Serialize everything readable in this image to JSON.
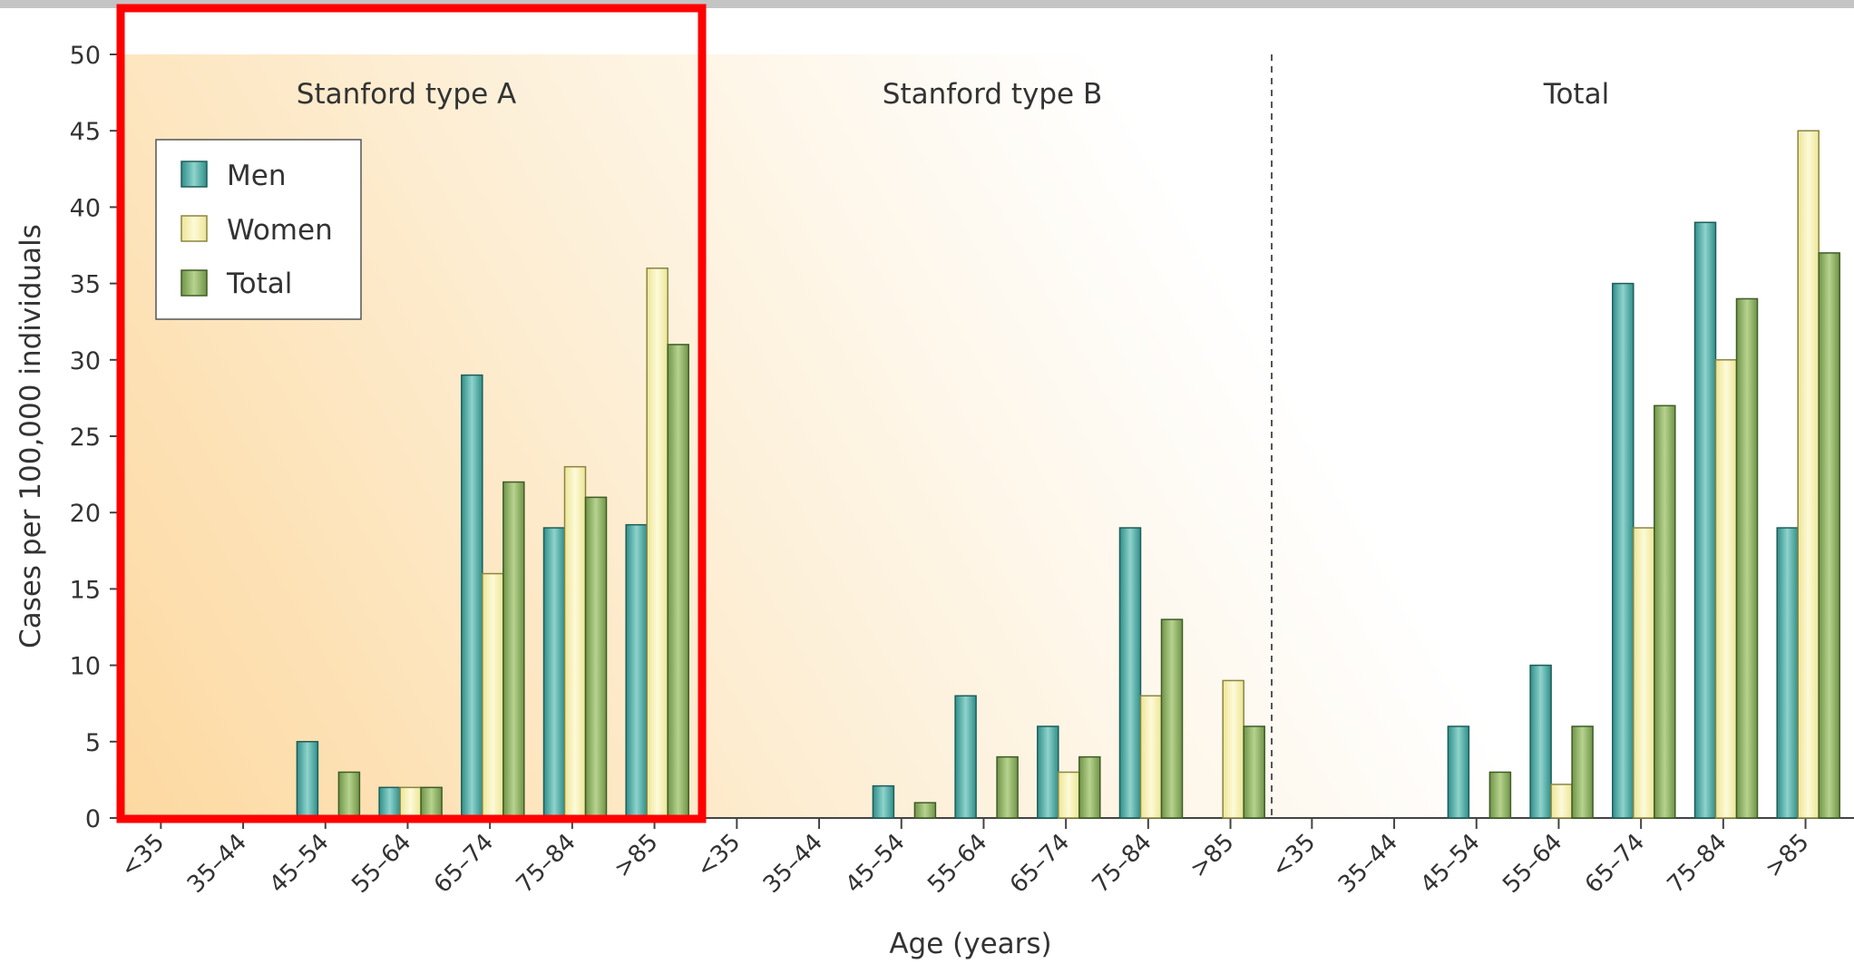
{
  "chart_data": {
    "type": "bar",
    "ylabel": "Cases per 100,000 individuals",
    "xlabel": "Age (years)",
    "ylim": [
      0,
      50
    ],
    "yticks": [
      "0",
      "5",
      "10",
      "15",
      "20",
      "25",
      "30",
      "35",
      "40",
      "45",
      "50"
    ],
    "categories": [
      "<35",
      "35–44",
      "45–54",
      "55–64",
      "65–74",
      "75–84",
      ">85"
    ],
    "legend": {
      "placement": "top-left",
      "entries": [
        "Men",
        "Women",
        "Total"
      ]
    },
    "colors": {
      "Men": "#3fa89e",
      "Women": "#f3efa3",
      "Total": "#7fa35b",
      "highlight": "#ff0000"
    },
    "panels": [
      {
        "title": "Stanford type A",
        "series": [
          {
            "name": "Men",
            "values": [
              0,
              0,
              5,
              2,
              29,
              19,
              19.2
            ]
          },
          {
            "name": "Women",
            "values": [
              0,
              0,
              0,
              2,
              16,
              23,
              36
            ]
          },
          {
            "name": "Total",
            "values": [
              0,
              0,
              3,
              2,
              22,
              21,
              31
            ]
          }
        ]
      },
      {
        "title": "Stanford type B",
        "series": [
          {
            "name": "Men",
            "values": [
              0,
              0,
              2.1,
              8,
              6,
              19,
              0
            ]
          },
          {
            "name": "Women",
            "values": [
              0,
              0,
              0,
              0,
              3,
              8,
              9
            ]
          },
          {
            "name": "Total",
            "values": [
              0,
              0,
              1,
              4,
              4,
              13,
              6
            ]
          }
        ]
      },
      {
        "title": "Total",
        "series": [
          {
            "name": "Men",
            "values": [
              0,
              0,
              6,
              10,
              35,
              39,
              19
            ]
          },
          {
            "name": "Women",
            "values": [
              0,
              0,
              0,
              2.2,
              19,
              30,
              45
            ]
          },
          {
            "name": "Total",
            "values": [
              0,
              0,
              3,
              6,
              27,
              34,
              37
            ]
          }
        ]
      }
    ]
  }
}
